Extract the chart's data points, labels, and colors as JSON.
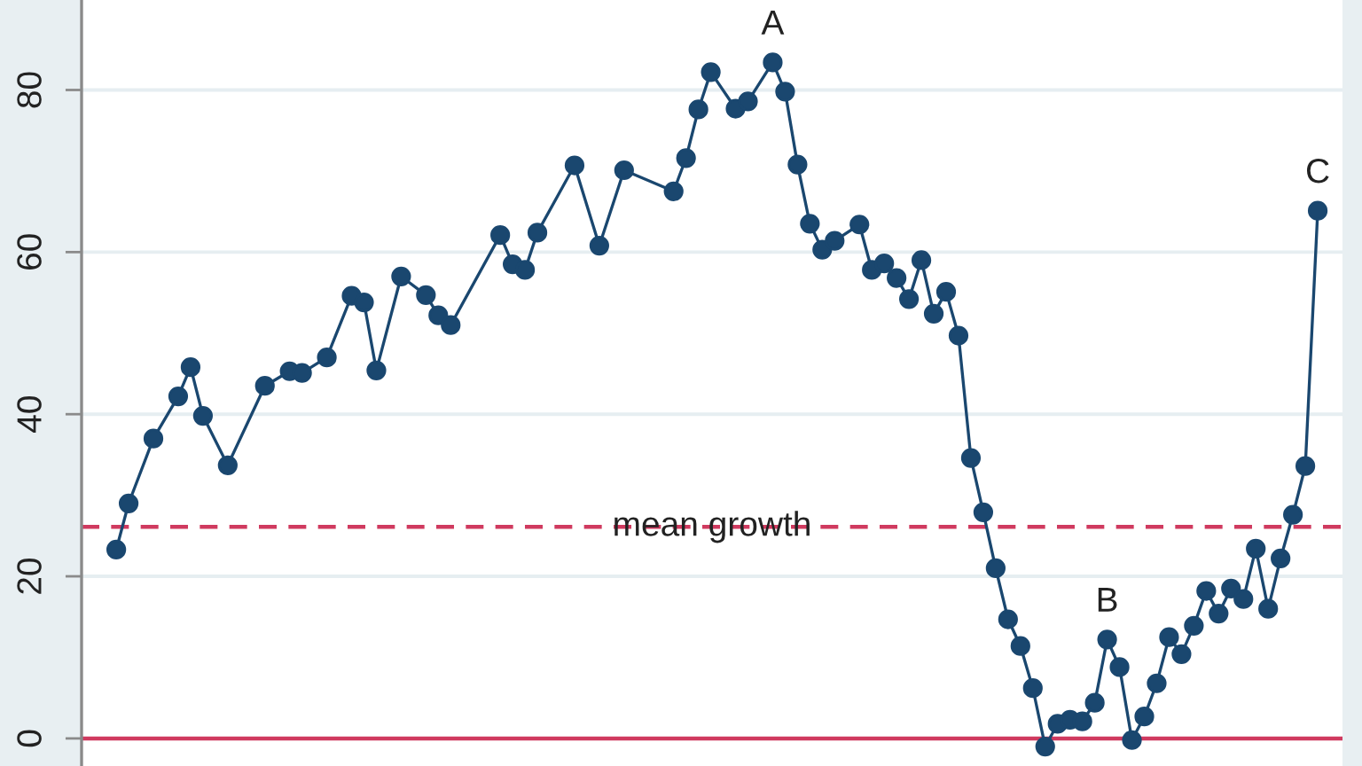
{
  "chart_data": {
    "type": "line",
    "categories": [
      null,
      null,
      null,
      null,
      null,
      null,
      null,
      null,
      null,
      null,
      null,
      null,
      null,
      null,
      null,
      null,
      null,
      null,
      null,
      null,
      null,
      null,
      null,
      null,
      null,
      null,
      null,
      null,
      null,
      null,
      null,
      null,
      null,
      null,
      null,
      null,
      null,
      null,
      null,
      null,
      null,
      null,
      null,
      null,
      null,
      null,
      null,
      null,
      null,
      null,
      null,
      null,
      null,
      null,
      null,
      null,
      null,
      null,
      null,
      null,
      null,
      null,
      null,
      null,
      null,
      null,
      null,
      null,
      null,
      null,
      null,
      null,
      null,
      null,
      null,
      null,
      null,
      null,
      null,
      null,
      null,
      null,
      null,
      null,
      null,
      null,
      null,
      null,
      null,
      null,
      null,
      null,
      null,
      null,
      null,
      null,
      null,
      null
    ],
    "series": [
      {
        "color": "#1a476f",
        "values": [
          23.3,
          29.0,
          null,
          37.0,
          null,
          42.2,
          45.8,
          39.8,
          null,
          33.7,
          null,
          null,
          43.5,
          null,
          45.3,
          45.1,
          null,
          47.0,
          null,
          54.6,
          53.8,
          45.4,
          null,
          57.0,
          null,
          54.7,
          52.2,
          51.0,
          null,
          null,
          null,
          62.1,
          58.5,
          57.8,
          62.4,
          null,
          null,
          70.7,
          null,
          60.8,
          null,
          70.1,
          null,
          null,
          null,
          67.5,
          71.6,
          77.6,
          82.2,
          null,
          77.7,
          78.6,
          null,
          83.4,
          79.8,
          70.8,
          63.5,
          60.3,
          61.4,
          null,
          63.4,
          57.8,
          58.6,
          56.8,
          54.2,
          59.0,
          52.4,
          55.1,
          49.7,
          34.6,
          27.9,
          21.0,
          14.7,
          11.4,
          6.2,
          -1.0,
          1.8,
          2.3,
          2.1,
          4.4,
          12.2,
          8.8,
          -0.2,
          2.7,
          6.8,
          12.5,
          10.4,
          13.9,
          18.2,
          15.4,
          18.5,
          17.2,
          23.4,
          16.0,
          22.2,
          27.6,
          33.6,
          65.1
        ]
      }
    ],
    "marker": "circle",
    "line_style": "solid",
    "ylim": [
      -3.4,
      91.1
    ],
    "yticks": [
      0,
      20,
      40,
      60,
      80
    ],
    "grid": "y",
    "tick_labels": "y",
    "ref_lines": [
      {
        "axis": "y",
        "value": 0,
        "color": "#d03a5f",
        "line_style": "solid"
      },
      {
        "axis": "y",
        "value": 26.1,
        "label": "mean growth",
        "color": "#d03a5f",
        "line_style": "dashed"
      }
    ],
    "annotations": [
      {
        "text": "A",
        "y": 83.4
      },
      {
        "text": "B",
        "y": 12.2
      },
      {
        "text": "C",
        "y": 65.1
      }
    ]
  }
}
